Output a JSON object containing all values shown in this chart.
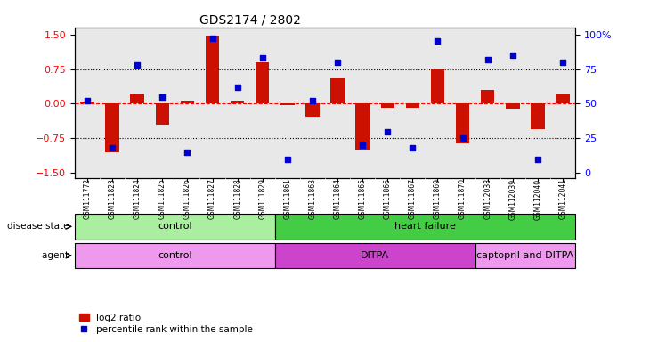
{
  "title": "GDS2174 / 2802",
  "samples": [
    "GSM111772",
    "GSM111823",
    "GSM111824",
    "GSM111825",
    "GSM111826",
    "GSM111827",
    "GSM111828",
    "GSM111829",
    "GSM111861",
    "GSM111863",
    "GSM111864",
    "GSM111865",
    "GSM111866",
    "GSM111867",
    "GSM111869",
    "GSM111870",
    "GSM112038",
    "GSM112039",
    "GSM112040",
    "GSM112041"
  ],
  "log2_ratio": [
    0.05,
    -1.05,
    0.22,
    -0.45,
    0.07,
    1.47,
    0.07,
    0.9,
    -0.03,
    -0.27,
    0.55,
    -1.0,
    -0.08,
    -0.08,
    0.75,
    -0.85,
    0.3,
    -0.1,
    -0.55,
    0.22
  ],
  "percentile": [
    52,
    18,
    78,
    55,
    15,
    97,
    62,
    83,
    10,
    52,
    80,
    20,
    30,
    18,
    95,
    25,
    82,
    85,
    10,
    80
  ],
  "bar_color": "#cc1100",
  "dot_color": "#0000cc",
  "ylim": [
    -1.6,
    1.65
  ],
  "yticks_left": [
    -1.5,
    -0.75,
    0.0,
    0.75,
    1.5
  ],
  "yticks_right": [
    0,
    25,
    50,
    75,
    100
  ],
  "disease_state": [
    {
      "label": "control",
      "start": 0,
      "end": 8,
      "color": "#aaeea0"
    },
    {
      "label": "heart failure",
      "start": 8,
      "end": 20,
      "color": "#44cc44"
    }
  ],
  "agent": [
    {
      "label": "control",
      "start": 0,
      "end": 8,
      "color": "#ee99ee"
    },
    {
      "label": "DITPA",
      "start": 8,
      "end": 16,
      "color": "#cc44cc"
    },
    {
      "label": "captopril and DITPA",
      "start": 16,
      "end": 20,
      "color": "#ee99ee"
    }
  ]
}
